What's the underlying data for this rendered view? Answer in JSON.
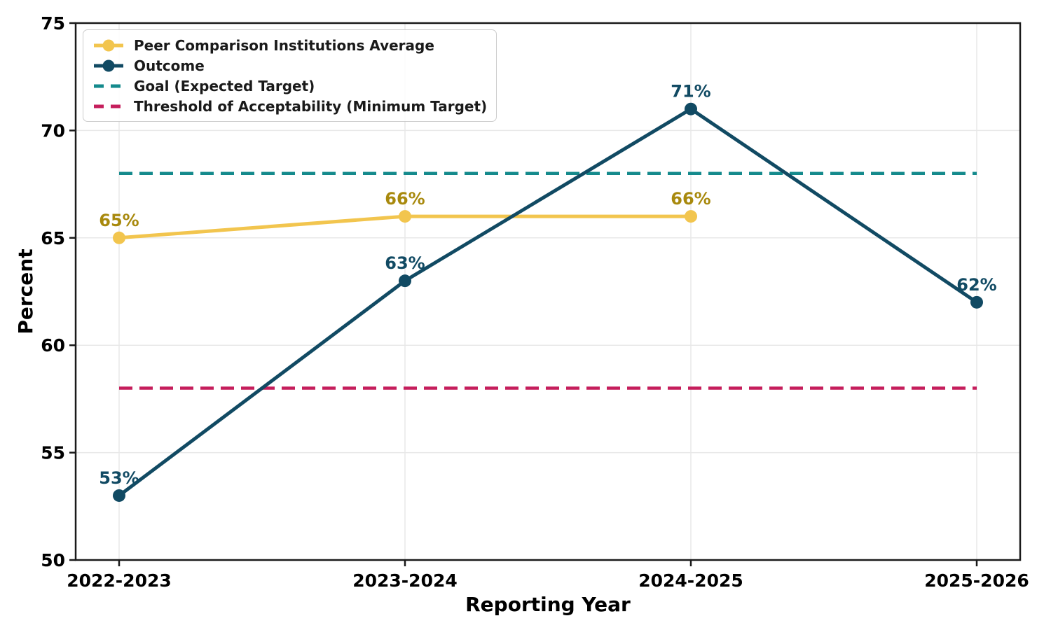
{
  "chart_data": {
    "type": "line",
    "title": "",
    "xlabel": "Reporting Year",
    "ylabel": "Percent",
    "ylim": [
      50,
      75
    ],
    "yticks": [
      50,
      55,
      60,
      65,
      70,
      75
    ],
    "categories": [
      "2022-2023",
      "2023-2024",
      "2024-2025",
      "2025-2026"
    ],
    "grid": true,
    "legend_position": "upper-left",
    "series": [
      {
        "name": "Peer Comparison Institutions Average",
        "values": [
          65,
          66,
          66,
          null
        ],
        "point_labels": [
          "65%",
          "66%",
          "66%",
          ""
        ],
        "color": "#F2C54E",
        "label_color": "#A8890D",
        "marker": "circle",
        "style": "solid"
      },
      {
        "name": "Outcome",
        "values": [
          53,
          63,
          71,
          62
        ],
        "point_labels": [
          "53%",
          "63%",
          "71%",
          "62%"
        ],
        "color": "#114A63",
        "label_color": "#114A63",
        "marker": "circle",
        "style": "solid"
      }
    ],
    "reference_lines": [
      {
        "name": "Goal (Expected Target)",
        "value": 68,
        "color": "#148A8C",
        "style": "dashed"
      },
      {
        "name": "Threshold of Acceptability (Minimum Target)",
        "value": 58,
        "color": "#C51E5C",
        "style": "dashed"
      }
    ]
  }
}
